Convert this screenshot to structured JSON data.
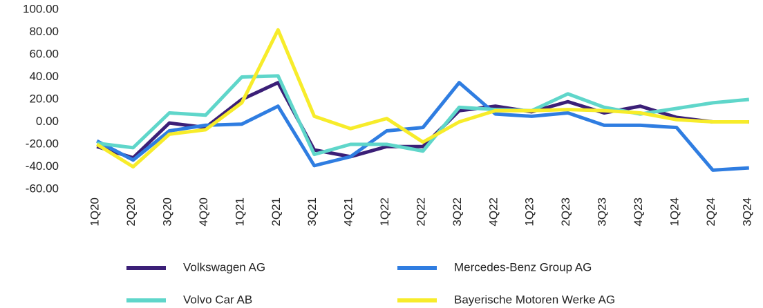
{
  "chart_data": {
    "type": "line",
    "categories": [
      "1Q20",
      "2Q20",
      "3Q20",
      "4Q20",
      "1Q21",
      "2Q21",
      "3Q21",
      "4Q21",
      "1Q22",
      "2Q22",
      "3Q22",
      "4Q22",
      "1Q23",
      "2Q23",
      "3Q23",
      "4Q23",
      "1Q24",
      "2Q24",
      "3Q24"
    ],
    "series": [
      {
        "name": "Volkswagen AG",
        "color": "#3b1f77",
        "values": [
          -22,
          -32,
          -1,
          -5,
          20,
          35,
          -25,
          -31,
          -22,
          -22,
          10,
          14,
          9,
          18,
          8,
          14,
          4,
          0,
          0
        ]
      },
      {
        "name": "Mercedes-Benz Group AG",
        "color": "#2f7de1",
        "values": [
          -17,
          -34,
          -8,
          -3,
          -2,
          14,
          -39,
          -31,
          -8,
          -5,
          35,
          7,
          5,
          8,
          -3,
          -3,
          -5,
          -43,
          -41
        ]
      },
      {
        "name": "Volvo Car AB",
        "color": "#5fd6ca",
        "values": [
          -19,
          -23,
          8,
          6,
          40,
          41,
          -29,
          -20,
          -20,
          -26,
          13,
          11,
          10,
          25,
          13,
          7,
          12,
          17,
          20
        ]
      },
      {
        "name": "Bayerische Motoren Werke AG",
        "color": "#f7ec2a",
        "values": [
          -20,
          -40,
          -11,
          -7,
          17,
          82,
          5,
          -6,
          3,
          -18,
          0,
          10,
          10,
          11,
          10,
          8,
          2,
          0,
          0
        ]
      }
    ],
    "ylim": [
      -60,
      100
    ],
    "yticks": [
      {
        "value": -60,
        "label": "-60.00"
      },
      {
        "value": -40,
        "label": "-40.00"
      },
      {
        "value": -20,
        "label": "-20.00"
      },
      {
        "value": 0,
        "label": "0.00"
      },
      {
        "value": 20,
        "label": "20.00"
      },
      {
        "value": 40,
        "label": "40.00"
      },
      {
        "value": 60,
        "label": "60.00"
      },
      {
        "value": 80,
        "label": "80.00"
      },
      {
        "value": 100,
        "label": "100.00"
      }
    ],
    "grid": false
  }
}
